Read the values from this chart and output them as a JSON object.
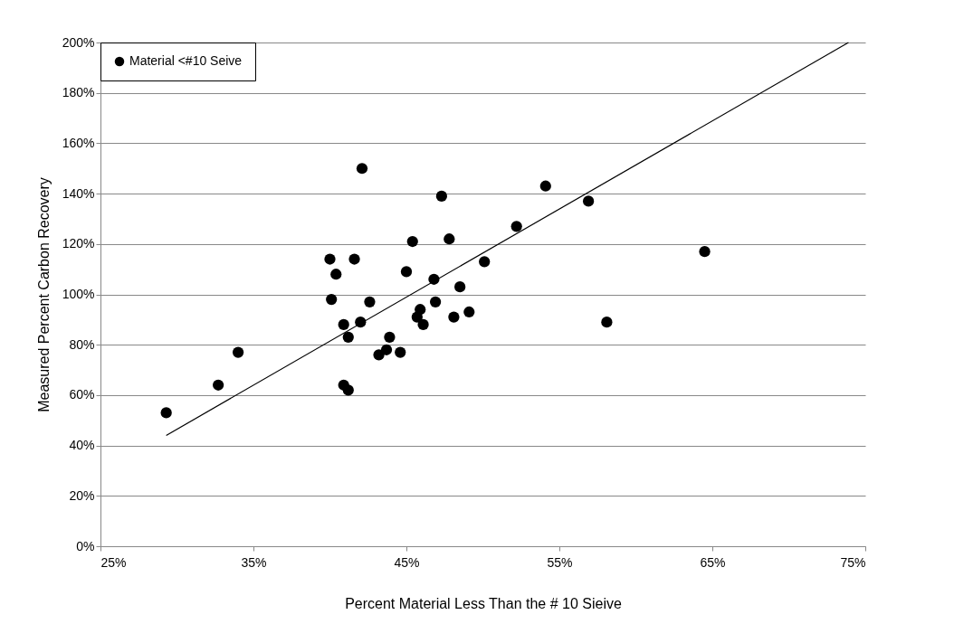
{
  "chart_data": {
    "type": "scatter",
    "xlabel": "Percent Material Less Than the # 10 Sieive",
    "ylabel": "Measured Percent Carbon Recovery",
    "series": [
      {
        "name": "Material <#10 Seive",
        "type": "scatter",
        "color": "#000000",
        "marker": "circle",
        "x": [
          29.3,
          32.7,
          34.0,
          42.1,
          40.0,
          41.6,
          40.4,
          40.1,
          40.9,
          42.0,
          41.2,
          40.9,
          41.2,
          47.3,
          54.1,
          45.4,
          47.8,
          52.2,
          45.0,
          50.1,
          46.8,
          48.5,
          42.6,
          46.9,
          45.9,
          45.7,
          46.1,
          48.1,
          49.1,
          43.9,
          43.2,
          43.7,
          44.6,
          64.5,
          58.1,
          56.9
        ],
        "values": [
          53,
          64,
          77,
          150,
          114,
          114,
          108,
          98,
          88,
          89,
          83,
          64,
          62,
          139,
          143,
          121,
          122,
          127,
          109,
          113,
          106,
          103,
          97,
          97,
          94,
          91,
          88,
          91,
          93,
          83,
          76,
          78,
          77,
          117,
          89,
          137
        ]
      },
      {
        "type": "line",
        "color": "#000000",
        "line_style": "solid",
        "x": [
          29.3,
          73.9
        ],
        "values": [
          44,
          200
        ]
      }
    ],
    "xlim": [
      25,
      75
    ],
    "xticks": [
      {
        "value": 25,
        "label": "25%"
      },
      {
        "value": 35,
        "label": "35%"
      },
      {
        "value": 45,
        "label": "45%"
      },
      {
        "value": 55,
        "label": "55%"
      },
      {
        "value": 65,
        "label": "65%"
      },
      {
        "value": 75,
        "label": "75%"
      }
    ],
    "ylim": [
      0,
      200
    ],
    "yticks": [
      {
        "value": 0,
        "label": "0%"
      },
      {
        "value": 20,
        "label": "20%"
      },
      {
        "value": 40,
        "label": "40%"
      },
      {
        "value": 60,
        "label": "60%"
      },
      {
        "value": 80,
        "label": "80%"
      },
      {
        "value": 100,
        "label": "100%"
      },
      {
        "value": 120,
        "label": "120%"
      },
      {
        "value": 140,
        "label": "140%"
      },
      {
        "value": 160,
        "label": "160%"
      },
      {
        "value": 180,
        "label": "180%"
      },
      {
        "value": 200,
        "label": "200%"
      }
    ],
    "grid": "y",
    "legend": "top left"
  }
}
